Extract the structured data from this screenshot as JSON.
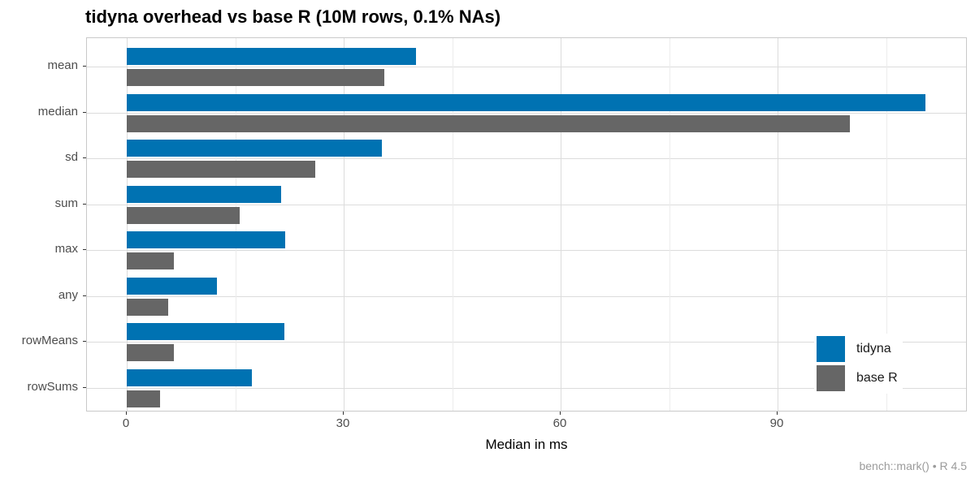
{
  "chart_data": {
    "type": "bar",
    "orientation": "horizontal",
    "title": "tidyna overhead vs base R (10M rows, 0.1% NAs)",
    "xlabel": "Median in ms",
    "ylabel": "",
    "caption": "bench::mark() • R 4.5",
    "categories": [
      "mean",
      "median",
      "sd",
      "sum",
      "max",
      "any",
      "rowMeans",
      "rowSums"
    ],
    "series": [
      {
        "name": "tidyna",
        "color": "#0072B2",
        "values": [
          40.0,
          110.5,
          35.3,
          21.3,
          21.9,
          12.5,
          21.8,
          17.3
        ]
      },
      {
        "name": "base R",
        "color": "#666666",
        "values": [
          35.6,
          100.0,
          26.1,
          15.6,
          6.5,
          5.7,
          6.5,
          4.6
        ]
      }
    ],
    "x_ticks": [
      0,
      30,
      60,
      90
    ],
    "x_minor_ticks": [
      15,
      45,
      75,
      105
    ],
    "xlim": [
      -5.5,
      116.3
    ],
    "grid": true,
    "legend_position": "inside-bottom-right",
    "colors": {
      "grid_major": "#dcdcdc",
      "grid_minor": "#ececec",
      "panel_border": "#c9c9c9",
      "axis_text": "#4d4d4d",
      "caption_text": "#9b9b9b"
    }
  }
}
